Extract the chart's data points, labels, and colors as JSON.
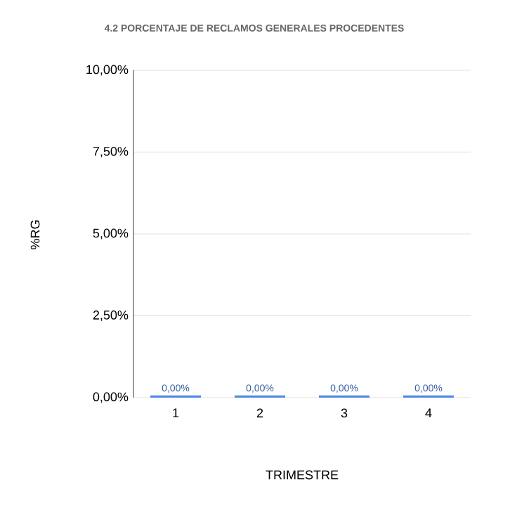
{
  "chart_data": {
    "type": "bar",
    "title": "4.2 PORCENTAJE DE RECLAMOS GENERALES PROCEDENTES",
    "xlabel": "TRIMESTRE",
    "ylabel": "%RG",
    "categories": [
      "1",
      "2",
      "3",
      "4"
    ],
    "values": [
      0,
      0,
      0,
      0
    ],
    "value_labels": [
      "0,00%",
      "0,00%",
      "0,00%",
      "0,00%"
    ],
    "color": "#4a86e8",
    "ylim": [
      0,
      10
    ],
    "yticks": [
      {
        "value": 0,
        "label": "0,00%"
      },
      {
        "value": 2.5,
        "label": "2,50%"
      },
      {
        "value": 5,
        "label": "5,00%"
      },
      {
        "value": 7.5,
        "label": "7,50%"
      },
      {
        "value": 10,
        "label": "10,00%"
      }
    ],
    "grid": "y"
  }
}
